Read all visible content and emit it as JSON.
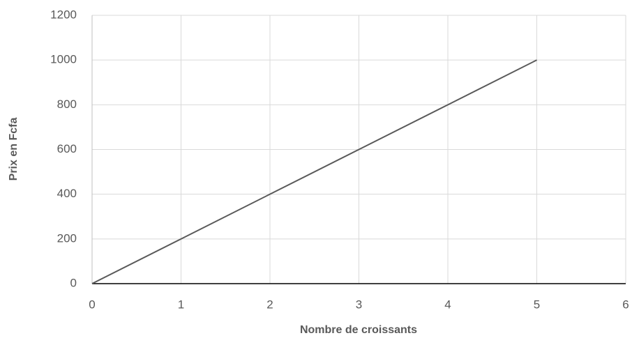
{
  "chart_data": {
    "type": "line",
    "x_label": "Nombre de croissants",
    "y_label": "Prix en Fcfa",
    "x": [
      0,
      1,
      2,
      3,
      4,
      5
    ],
    "values": [
      0,
      200,
      400,
      600,
      800,
      1000
    ],
    "color": "#595959",
    "xlim": [
      0,
      6
    ],
    "xticks": [
      0,
      1,
      2,
      3,
      4,
      5,
      6
    ],
    "ylim": [
      0,
      1200
    ],
    "yticks": [
      0,
      200,
      400,
      600,
      800,
      1000,
      1200
    ],
    "grid": true
  }
}
